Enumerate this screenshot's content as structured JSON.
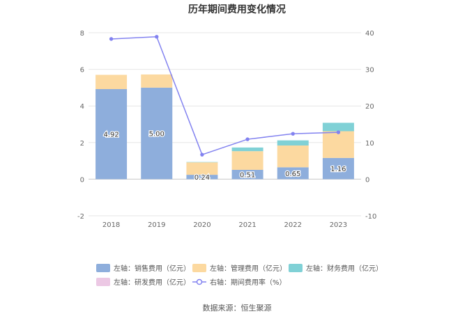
{
  "chart_data": {
    "type": "bar",
    "title": "历年期间费用变化情况",
    "categories": [
      "2018",
      "2019",
      "2020",
      "2021",
      "2022",
      "2023"
    ],
    "stacked": true,
    "y_left": {
      "ylim": [
        -2,
        8
      ],
      "ticks": [
        "-2",
        "0",
        "2",
        "4",
        "6",
        "8"
      ]
    },
    "y_right": {
      "ylim": [
        -10,
        40
      ],
      "ticks": [
        "-10",
        "0",
        "10",
        "20",
        "30",
        "40"
      ]
    },
    "series": [
      {
        "name": "左轴：销售费用（亿元）",
        "axis": "left",
        "color": "#8eaedc",
        "values": [
          4.92,
          5.0,
          0.24,
          0.51,
          0.65,
          1.16
        ],
        "labels": [
          "4.92",
          "5.00",
          "0.24",
          "0.51",
          "0.65",
          "1.16"
        ]
      },
      {
        "name": "左轴：管理费用（亿元）",
        "axis": "left",
        "color": "#fcd9a0",
        "values": [
          0.78,
          0.72,
          0.68,
          1.02,
          1.19,
          1.46
        ]
      },
      {
        "name": "左轴：财务费用（亿元）",
        "axis": "left",
        "color": "#80d1d6",
        "values": [
          0.0,
          0.0,
          0.02,
          0.2,
          0.28,
          0.46
        ]
      },
      {
        "name": "左轴：研发费用（亿元）",
        "axis": "left",
        "color": "#ecc8e4",
        "values": [
          0,
          0,
          0,
          0,
          0,
          0
        ]
      },
      {
        "name": "右轴：期间费用率（%）",
        "axis": "right",
        "type": "line",
        "color": "#8282f0",
        "values": [
          38.3,
          38.9,
          6.7,
          10.9,
          12.4,
          12.8
        ]
      }
    ],
    "grid": true,
    "legend_position": "bottom"
  },
  "source": "数据来源：恒生聚源"
}
